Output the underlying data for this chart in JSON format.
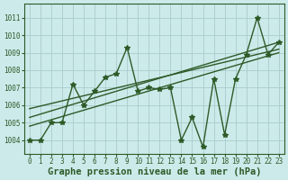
{
  "xlabel": "Graphe pression niveau de la mer (hPa)",
  "xlim": [
    -0.5,
    23.5
  ],
  "ylim": [
    1003.2,
    1011.8
  ],
  "yticks": [
    1004,
    1005,
    1006,
    1007,
    1008,
    1009,
    1010,
    1011
  ],
  "xticks": [
    0,
    1,
    2,
    3,
    4,
    5,
    6,
    7,
    8,
    9,
    10,
    11,
    12,
    13,
    14,
    15,
    16,
    17,
    18,
    19,
    20,
    21,
    22,
    23
  ],
  "background_color": "#cceaea",
  "grid_color": "#aacccc",
  "line_color": "#2d5a27",
  "main_x": [
    0,
    1,
    2,
    3,
    4,
    5,
    6,
    7,
    8,
    9,
    10,
    11,
    12,
    13,
    14,
    15,
    16,
    17,
    18,
    19,
    20,
    21,
    22,
    23
  ],
  "main_y": [
    1004.0,
    1004.0,
    1005.0,
    1005.0,
    1007.2,
    1006.0,
    1006.8,
    1007.6,
    1007.8,
    1009.3,
    1006.8,
    1007.0,
    1006.9,
    1007.0,
    1004.0,
    1005.3,
    1003.6,
    1007.5,
    1004.3,
    1007.5,
    1008.9,
    1011.0,
    1008.9,
    1009.6
  ],
  "trend1_x": [
    0,
    23
  ],
  "trend1_y": [
    1004.8,
    1009.0
  ],
  "trend2_x": [
    0,
    23
  ],
  "trend2_y": [
    1005.3,
    1009.6
  ],
  "trend3_x": [
    0,
    23
  ],
  "trend3_y": [
    1005.8,
    1009.2
  ],
  "marker": "*",
  "markersize": 4,
  "linewidth": 1.0,
  "xlabel_fontsize": 7.5,
  "tick_fontsize": 5.5
}
